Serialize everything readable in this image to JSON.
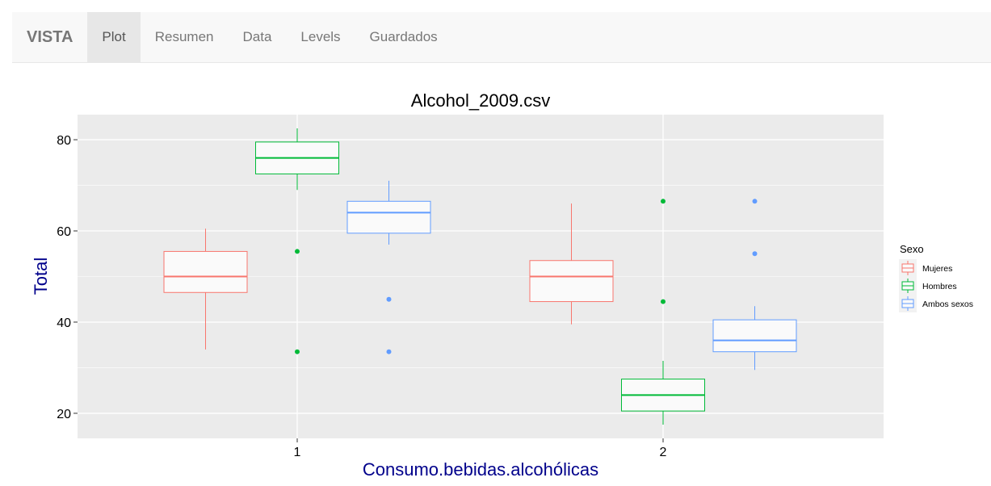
{
  "navbar": {
    "brand": "VISTA",
    "tabs": [
      {
        "label": "Plot",
        "active": true
      },
      {
        "label": "Resumen",
        "active": false
      },
      {
        "label": "Data",
        "active": false
      },
      {
        "label": "Levels",
        "active": false
      },
      {
        "label": "Guardados",
        "active": false
      }
    ]
  },
  "chart_data": {
    "type": "box",
    "title": "Alcohol_2009.csv",
    "xlabel": "Consumo.bebidas.alcohólicas",
    "ylabel": "Total",
    "categories": [
      "1",
      "2"
    ],
    "yticks": [
      20,
      40,
      60,
      80
    ],
    "ylim": [
      14.5,
      85.5
    ],
    "grid": true,
    "legend": {
      "title": "Sexo",
      "position": "right",
      "entries": [
        {
          "name": "Mujeres",
          "color": "#F8766D"
        },
        {
          "name": "Hombres",
          "color": "#00BA38"
        },
        {
          "name": "Ambos sexos",
          "color": "#619CFF"
        }
      ]
    },
    "boxes": [
      {
        "category": "1",
        "series": "Mujeres",
        "whisker_low": 34.0,
        "q1": 46.5,
        "median": 50.0,
        "q3": 55.5,
        "whisker_high": 60.5,
        "outliers": []
      },
      {
        "category": "1",
        "series": "Hombres",
        "whisker_low": 69.0,
        "q1": 72.5,
        "median": 76.0,
        "q3": 79.5,
        "whisker_high": 82.5,
        "outliers": [
          55.5,
          33.5
        ]
      },
      {
        "category": "1",
        "series": "Ambos sexos",
        "whisker_low": 57.0,
        "q1": 59.5,
        "median": 64.0,
        "q3": 66.5,
        "whisker_high": 71.0,
        "outliers": [
          45.0,
          33.5
        ]
      },
      {
        "category": "2",
        "series": "Mujeres",
        "whisker_low": 39.5,
        "q1": 44.5,
        "median": 50.0,
        "q3": 53.5,
        "whisker_high": 66.0,
        "outliers": []
      },
      {
        "category": "2",
        "series": "Hombres",
        "whisker_low": 17.5,
        "q1": 20.5,
        "median": 24.0,
        "q3": 27.5,
        "whisker_high": 31.5,
        "outliers": [
          66.5,
          44.5
        ]
      },
      {
        "category": "2",
        "series": "Ambos sexos",
        "whisker_low": 29.5,
        "q1": 33.5,
        "median": 36.0,
        "q3": 40.5,
        "whisker_high": 43.5,
        "outliers": [
          66.5,
          55.0
        ]
      }
    ]
  }
}
